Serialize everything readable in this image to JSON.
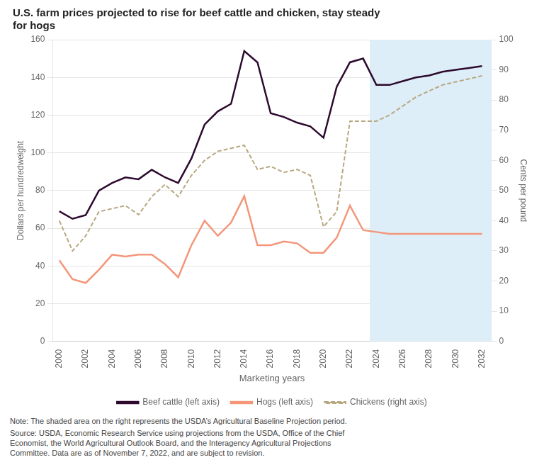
{
  "chart_data": {
    "type": "line",
    "title": "U.S. farm prices projected to rise for beef cattle and chicken, stay steady\nfor hogs",
    "xlabel": "Marketing years",
    "ylabel": "Dollars per hundredweight",
    "y2label": "Cents per pound",
    "note": "Note: The shaded area on the right represents the USDA’s Agricultural Baseline Projection period.",
    "source": "Source: USDA, Economic Research Service using projections from the USDA, Office of the Chief\nEconomist, the World Agricultural Outlook Board, and the Interagency Agricultural Projections\nCommittee. Data are as of November 7, 2022, and are subject to revision.",
    "x": [
      2000,
      2001,
      2002,
      2003,
      2004,
      2005,
      2006,
      2007,
      2008,
      2009,
      2010,
      2011,
      2012,
      2013,
      2014,
      2015,
      2016,
      2017,
      2018,
      2019,
      2020,
      2021,
      2022,
      2023,
      2024,
      2025,
      2026,
      2027,
      2028,
      2029,
      2030,
      2031,
      2032
    ],
    "series": [
      {
        "name": "Beef cattle (left axis)",
        "color": "#2d0a2e",
        "line_style": "solid",
        "axis": "y",
        "values": [
          69,
          65,
          67,
          80,
          84,
          87,
          86,
          91,
          87,
          84,
          97,
          115,
          122,
          126,
          154,
          148,
          121,
          119,
          116,
          114,
          108,
          135,
          148,
          150,
          136,
          136,
          138,
          140,
          141,
          143,
          144,
          145,
          146
        ]
      },
      {
        "name": "Hogs (left axis)",
        "color": "#f4967a",
        "line_style": "solid",
        "axis": "y",
        "values": [
          43,
          33,
          31,
          38,
          46,
          45,
          46,
          46,
          41,
          34,
          51,
          64,
          56,
          63,
          77,
          51,
          51,
          53,
          52,
          47,
          47,
          55,
          72,
          59,
          58,
          57,
          57,
          57,
          57,
          57,
          57,
          57,
          57
        ]
      },
      {
        "name": "Chickens (right axis)",
        "color": "#b8a882",
        "line_style": "dashed",
        "axis": "y2",
        "values": [
          40,
          30,
          35,
          43,
          44,
          45,
          42,
          48,
          52,
          48,
          55,
          60,
          63,
          64,
          65,
          57,
          58,
          56,
          57,
          55,
          38,
          43,
          73,
          73,
          73,
          75,
          78,
          81,
          83,
          85,
          86,
          87,
          88
        ]
      }
    ],
    "xlim": [
      1999.5,
      2032.7
    ],
    "xticks": [
      2000,
      2002,
      2004,
      2006,
      2008,
      2010,
      2012,
      2014,
      2016,
      2018,
      2020,
      2022,
      2024,
      2026,
      2028,
      2030,
      2032
    ],
    "ylim": [
      0,
      160
    ],
    "yticks": [
      0,
      20,
      40,
      60,
      80,
      100,
      120,
      140,
      160
    ],
    "y2lim": [
      0,
      100
    ],
    "y2ticks": [
      0,
      10,
      20,
      30,
      40,
      50,
      60,
      70,
      80,
      90,
      100
    ],
    "shaded_region": {
      "x": [
        2023.5,
        2032.7
      ],
      "color": "#ddeef8"
    },
    "grid": true,
    "legend": "bottom"
  }
}
